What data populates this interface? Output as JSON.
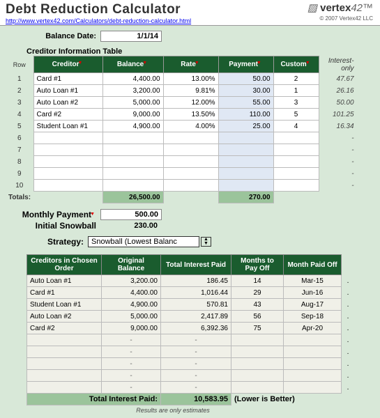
{
  "header": {
    "title": "Debt Reduction Calculator",
    "url": "http://www.vertex42.com/Calculators/debt-reduction-calculator.html",
    "logo_text": "vertex",
    "logo_num": "42",
    "copyright": "© 2007 Vertex42 LLC"
  },
  "balance_date": {
    "label": "Balance Date:",
    "value": "1/1/14"
  },
  "creditor_section_title": "Creditor Information Table",
  "creditor_headers": {
    "row": "Row",
    "creditor": "Creditor",
    "balance": "Balance",
    "rate": "Rate",
    "payment": "Payment",
    "custom": "Custom",
    "interest_only": "Interest-only"
  },
  "creditors": [
    {
      "row": "1",
      "name": "Card #1",
      "balance": "4,400.00",
      "rate": "13.00%",
      "payment": "50.00",
      "custom": "2",
      "io": "47.67"
    },
    {
      "row": "2",
      "name": "Auto Loan #1",
      "balance": "3,200.00",
      "rate": "9.81%",
      "payment": "30.00",
      "custom": "1",
      "io": "26.16"
    },
    {
      "row": "3",
      "name": "Auto Loan #2",
      "balance": "5,000.00",
      "rate": "12.00%",
      "payment": "55.00",
      "custom": "3",
      "io": "50.00"
    },
    {
      "row": "4",
      "name": "Card #2",
      "balance": "9,000.00",
      "rate": "13.50%",
      "payment": "110.00",
      "custom": "5",
      "io": "101.25"
    },
    {
      "row": "5",
      "name": "Student Loan #1",
      "balance": "4,900.00",
      "rate": "4.00%",
      "payment": "25.00",
      "custom": "4",
      "io": "16.34"
    },
    {
      "row": "6",
      "name": "",
      "balance": "",
      "rate": "",
      "payment": "",
      "custom": "",
      "io": "-"
    },
    {
      "row": "7",
      "name": "",
      "balance": "",
      "rate": "",
      "payment": "",
      "custom": "",
      "io": "-"
    },
    {
      "row": "8",
      "name": "",
      "balance": "",
      "rate": "",
      "payment": "",
      "custom": "",
      "io": "-"
    },
    {
      "row": "9",
      "name": "",
      "balance": "",
      "rate": "",
      "payment": "",
      "custom": "",
      "io": "-"
    },
    {
      "row": "10",
      "name": "",
      "balance": "",
      "rate": "",
      "payment": "",
      "custom": "",
      "io": "-"
    }
  ],
  "totals": {
    "label": "Totals:",
    "balance": "26,500.00",
    "payment": "270.00"
  },
  "monthly_payment": {
    "label": "Monthly Payment",
    "value": "500.00"
  },
  "initial_snowball": {
    "label": "Initial Snowball",
    "value": "230.00"
  },
  "strategy": {
    "label": "Strategy:",
    "value": "Snowball (Lowest Balanc"
  },
  "results_headers": {
    "creditors": "Creditors in Chosen Order",
    "orig_balance": "Original Balance",
    "total_interest": "Total Interest Paid",
    "months": "Months to Pay Off",
    "paid_off": "Month Paid Off"
  },
  "results": [
    {
      "name": "Auto Loan #1",
      "bal": "3,200.00",
      "interest": "186.45",
      "months": "14",
      "paid": "Mar-15"
    },
    {
      "name": "Card #1",
      "bal": "4,400.00",
      "interest": "1,016.44",
      "months": "29",
      "paid": "Jun-16"
    },
    {
      "name": "Student Loan #1",
      "bal": "4,900.00",
      "interest": "570.81",
      "months": "43",
      "paid": "Aug-17"
    },
    {
      "name": "Auto Loan #2",
      "bal": "5,000.00",
      "interest": "2,417.89",
      "months": "56",
      "paid": "Sep-18"
    },
    {
      "name": "Card #2",
      "bal": "9,000.00",
      "interest": "6,392.36",
      "months": "75",
      "paid": "Apr-20"
    },
    {
      "name": "",
      "bal": "-",
      "interest": "-",
      "months": "",
      "paid": ""
    },
    {
      "name": "",
      "bal": "-",
      "interest": "-",
      "months": "",
      "paid": ""
    },
    {
      "name": "",
      "bal": "-",
      "interest": "-",
      "months": "",
      "paid": ""
    },
    {
      "name": "",
      "bal": "-",
      "interest": "-",
      "months": "",
      "paid": ""
    },
    {
      "name": "",
      "bal": "-",
      "interest": "-",
      "months": "",
      "paid": ""
    }
  ],
  "total_interest_paid": {
    "label": "Total Interest Paid:",
    "value": "10,583.95",
    "note": "(Lower is Better)"
  },
  "footnote": "Results are only estimates",
  "colors": {
    "page_bg": "#d8e8d8",
    "header_bg": "#1a5c2e",
    "cell_bg": "#ffffff",
    "payment_bg": "#e0e8f4",
    "totals_bg": "#9bc49b",
    "results_cell_bg": "#f0f0e8"
  }
}
